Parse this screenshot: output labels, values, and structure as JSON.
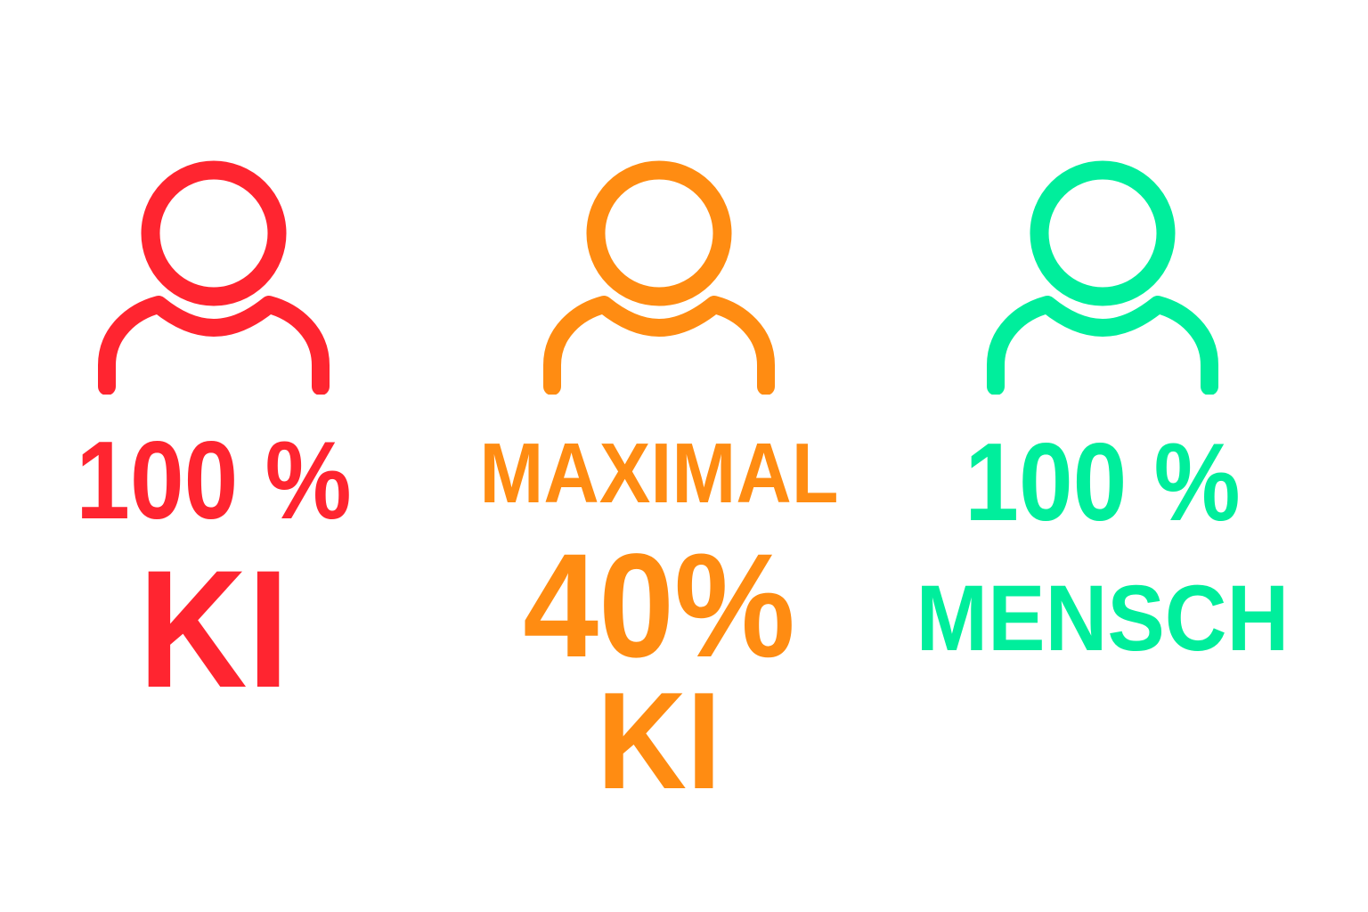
{
  "colors": {
    "ai": "#ff2530",
    "mixed": "#ff8c12",
    "human": "#00ee9c"
  },
  "columns": [
    {
      "icon": "person-icon",
      "line1": "100 %",
      "line2": "KI"
    },
    {
      "icon": "person-icon",
      "line1": "MAXIMAL",
      "line2": "40%",
      "line3": "KI"
    },
    {
      "icon": "person-icon",
      "line1": "100 %",
      "line2": "MENSCH"
    }
  ]
}
